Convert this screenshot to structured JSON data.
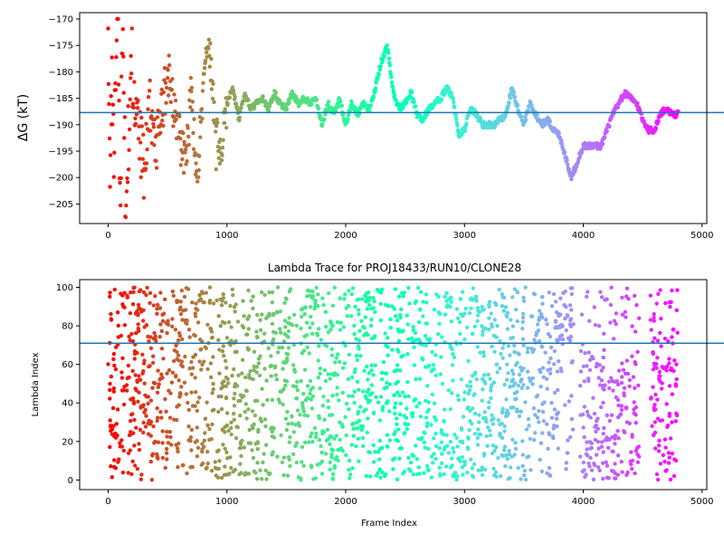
{
  "chart_data": [
    {
      "type": "scatter",
      "title": "",
      "xlabel": "",
      "ylabel": "ΔG (kT)",
      "xlim": [
        -240,
        5040
      ],
      "ylim": [
        -208.7,
        -168.8
      ],
      "xticks": [
        0,
        1000,
        2000,
        3000,
        4000,
        5000
      ],
      "yticks": [
        -205,
        -200,
        -195,
        -190,
        -185,
        -180,
        -175,
        -170
      ],
      "colormap": "rainbow (red at frame 0 to violet at frame 4800)",
      "reference_line": {
        "y": -187.7,
        "color": "#1f77b4"
      },
      "trend_points": [
        [
          0,
          -170
        ],
        [
          10,
          -190
        ],
        [
          20,
          -200
        ],
        [
          30,
          -180
        ],
        [
          40,
          -185
        ],
        [
          50,
          -195
        ],
        [
          60,
          -188
        ],
        [
          80,
          -170
        ],
        [
          100,
          -205
        ],
        [
          120,
          -175
        ],
        [
          150,
          -207
        ],
        [
          180,
          -185
        ],
        [
          200,
          -178
        ],
        [
          250,
          -190
        ],
        [
          300,
          -200
        ],
        [
          350,
          -185
        ],
        [
          400,
          -195
        ],
        [
          450,
          -188
        ],
        [
          500,
          -180
        ],
        [
          550,
          -186
        ],
        [
          600,
          -192
        ],
        [
          650,
          -199
        ],
        [
          700,
          -185
        ],
        [
          750,
          -200
        ],
        [
          800,
          -182
        ],
        [
          850,
          -175
        ],
        [
          900,
          -190
        ],
        [
          950,
          -195
        ],
        [
          1000,
          -186
        ],
        [
          1050,
          -183
        ],
        [
          1100,
          -189
        ],
        [
          1150,
          -184
        ],
        [
          1200,
          -187
        ],
        [
          1250,
          -186
        ],
        [
          1300,
          -185
        ],
        [
          1350,
          -187
        ],
        [
          1400,
          -184
        ],
        [
          1450,
          -186
        ],
        [
          1500,
          -187
        ],
        [
          1550,
          -184
        ],
        [
          1600,
          -186
        ],
        [
          1650,
          -185
        ],
        [
          1700,
          -186
        ],
        [
          1750,
          -185
        ],
        [
          1800,
          -190
        ],
        [
          1850,
          -186
        ],
        [
          1900,
          -188
        ],
        [
          1950,
          -185
        ],
        [
          2000,
          -190
        ],
        [
          2050,
          -186
        ],
        [
          2100,
          -188
        ],
        [
          2150,
          -186
        ],
        [
          2200,
          -187
        ],
        [
          2250,
          -183
        ],
        [
          2300,
          -178
        ],
        [
          2350,
          -175
        ],
        [
          2400,
          -184
        ],
        [
          2450,
          -187
        ],
        [
          2500,
          -186
        ],
        [
          2550,
          -184
        ],
        [
          2600,
          -188
        ],
        [
          2650,
          -189
        ],
        [
          2700,
          -187
        ],
        [
          2750,
          -186
        ],
        [
          2800,
          -185
        ],
        [
          2850,
          -183
        ],
        [
          2900,
          -185
        ],
        [
          2950,
          -192
        ],
        [
          3000,
          -191
        ],
        [
          3050,
          -187
        ],
        [
          3100,
          -188
        ],
        [
          3150,
          -190
        ],
        [
          3200,
          -190
        ],
        [
          3250,
          -190
        ],
        [
          3300,
          -189
        ],
        [
          3350,
          -188
        ],
        [
          3400,
          -183
        ],
        [
          3450,
          -187
        ],
        [
          3500,
          -190
        ],
        [
          3550,
          -186
        ],
        [
          3600,
          -188
        ],
        [
          3650,
          -190
        ],
        [
          3700,
          -189
        ],
        [
          3750,
          -191
        ],
        [
          3800,
          -192
        ],
        [
          3850,
          -196
        ],
        [
          3900,
          -200
        ],
        [
          3950,
          -197
        ],
        [
          4000,
          -194
        ],
        [
          4050,
          -194
        ],
        [
          4100,
          -194
        ],
        [
          4150,
          -194
        ],
        [
          4200,
          -191
        ],
        [
          4250,
          -188
        ],
        [
          4300,
          -186
        ],
        [
          4350,
          -184
        ],
        [
          4400,
          -185
        ],
        [
          4450,
          -186
        ],
        [
          4500,
          -189
        ],
        [
          4550,
          -191
        ],
        [
          4600,
          -191
        ],
        [
          4650,
          -188
        ],
        [
          4700,
          -187
        ],
        [
          4750,
          -188
        ],
        [
          4800,
          -188
        ]
      ]
    },
    {
      "type": "scatter",
      "title": "Lambda Trace for PROJ18433/RUN10/CLONE28",
      "xlabel": "Frame Index",
      "ylabel": "Lambda Index",
      "xlim": [
        -240,
        5040
      ],
      "ylim": [
        -5,
        104
      ],
      "xticks": [
        0,
        1000,
        2000,
        3000,
        4000,
        5000
      ],
      "yticks": [
        0,
        20,
        40,
        60,
        80,
        100
      ],
      "colormap": "rainbow (red at frame 0 to violet at frame 4800)",
      "reference_line": {
        "y": 71,
        "color": "#1f77b4"
      },
      "sampling": "about 4800 points, lambda values spread across 0 to 100; dense columns at frames 3750-3900 (70-100), sparse gap around 3900-3950 and 4500-4600"
    }
  ]
}
